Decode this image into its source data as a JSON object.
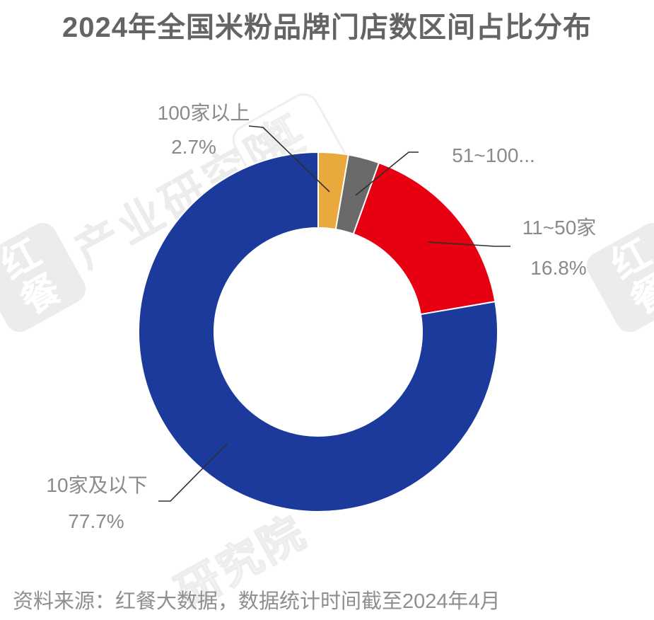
{
  "title": "2024年全国米粉品牌门店数区间占比分布",
  "source_note": "资料来源：红餐大数据，数据统计时间截至2024年4月",
  "watermark": {
    "badge_text": "红餐",
    "band_text": "产业研究院",
    "tail_text": "研究院",
    "color": "#ECECEC"
  },
  "chart_data": {
    "type": "pie",
    "subtype": "donut",
    "title": "2024年全国米粉品牌门店数区间占比分布",
    "start_angle_deg": 0,
    "direction": "clockwise",
    "center": [
      450,
      469
    ],
    "outer_radius": 254,
    "inner_radius": 147,
    "legend": "none",
    "separator": {
      "color": "#FFFFFF",
      "width": 2
    },
    "series": [
      {
        "name": "100家以上",
        "value": 2.7,
        "color": "#EAA93C",
        "label": "100家以上",
        "pct_label": "2.7%"
      },
      {
        "name": "51~100家",
        "value": 2.8,
        "color": "#6A6A6A",
        "label": "51~100...",
        "pct_label": ""
      },
      {
        "name": "11~50家",
        "value": 16.8,
        "color": "#E60012",
        "label": "11~50家",
        "pct_label": "16.8%"
      },
      {
        "name": "10家及以下",
        "value": 77.7,
        "color": "#1B3A9B",
        "label": "10家及以下",
        "pct_label": "77.7%"
      }
    ]
  }
}
